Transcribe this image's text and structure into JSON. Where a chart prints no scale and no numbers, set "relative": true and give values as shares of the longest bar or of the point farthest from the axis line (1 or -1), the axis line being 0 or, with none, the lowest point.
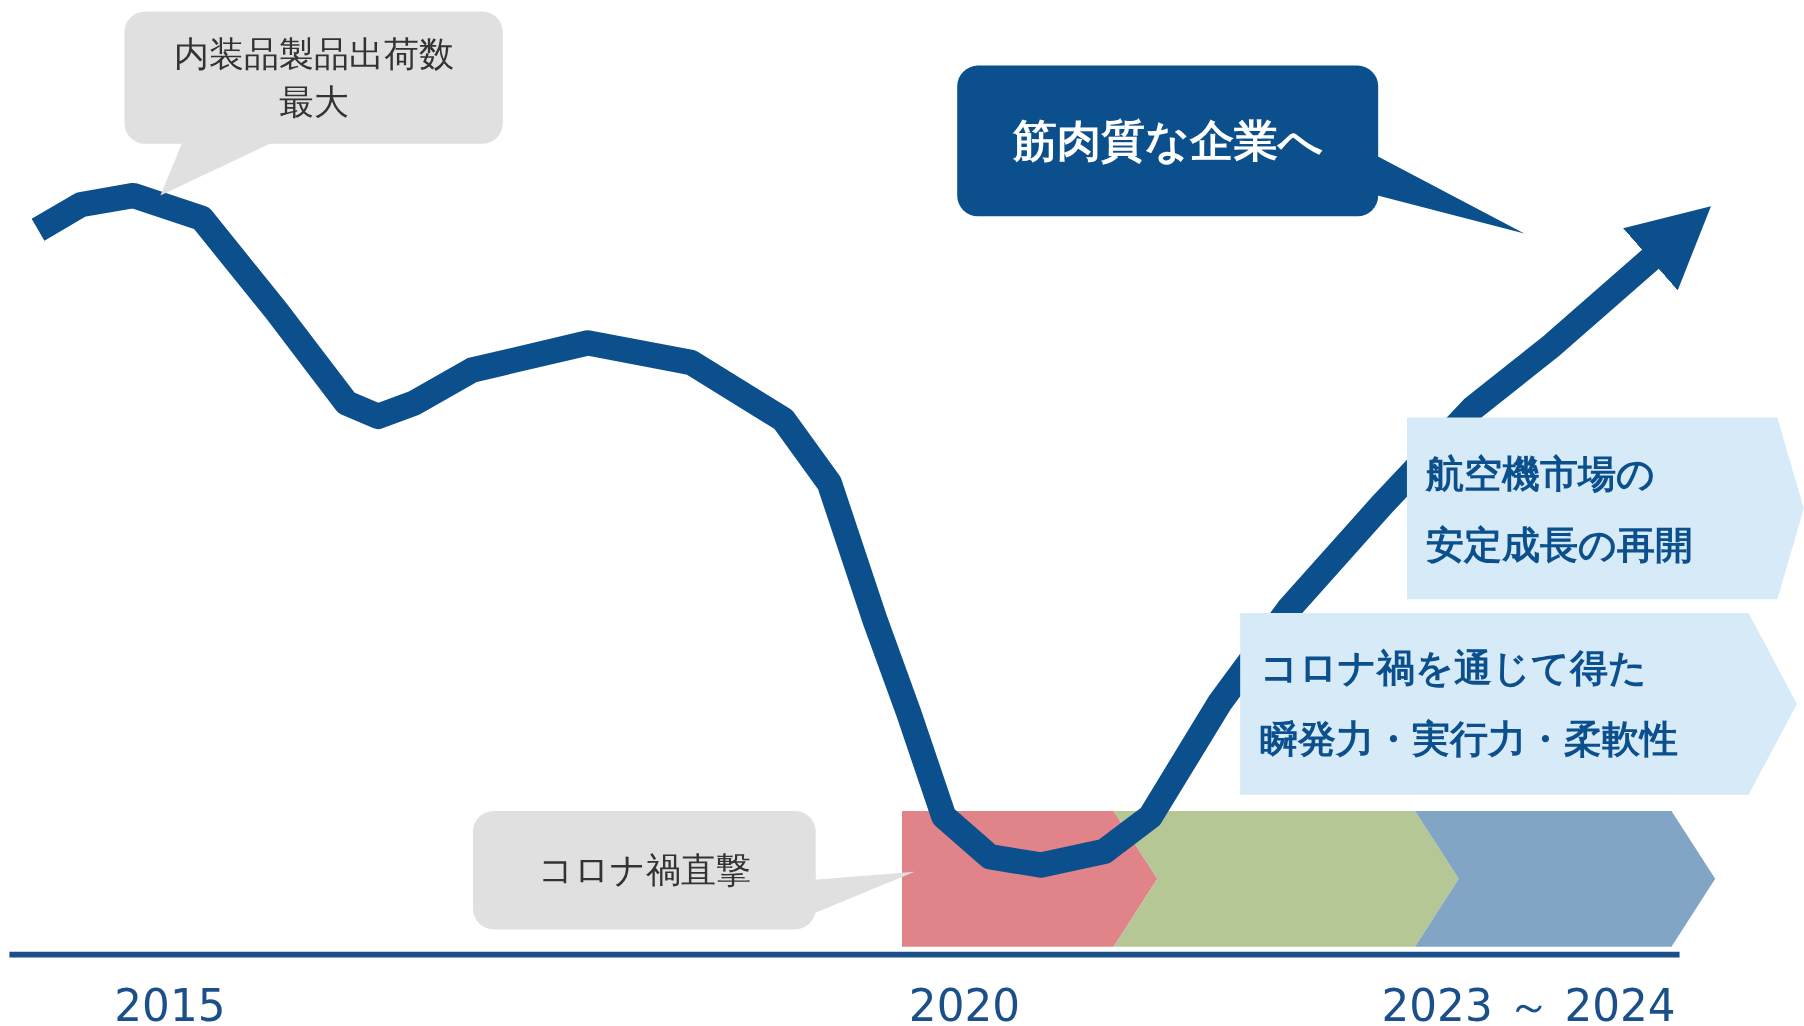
{
  "chart_data": {
    "type": "line",
    "relative": true,
    "tick_labels": "x",
    "x": [
      2014.17,
      2014.44,
      2014.77,
      2015.2,
      2015.67,
      2016.11,
      2016.31,
      2016.54,
      2016.9,
      2017.63,
      2018.28,
      2018.86,
      2019.15,
      2019.44,
      2019.65,
      2019.87,
      2020.16,
      2020.48,
      2020.88,
      2021.17,
      2021.61,
      2022.04,
      2022.62,
      2023.2,
      2023.7,
      2024.36
    ],
    "series": [
      {
        "color": "#0b4f8c",
        "values": [
          0.955,
          0.988,
          1,
          0.97,
          0.848,
          0.727,
          0.709,
          0.727,
          0.77,
          0.806,
          0.78,
          0.705,
          0.621,
          0.439,
          0.318,
          0.182,
          0.129,
          0.118,
          0.136,
          0.182,
          0.333,
          0.455,
          0.591,
          0.72,
          0.803,
          0.924
        ]
      }
    ],
    "xlim": [
      2013.99,
      2024.5
    ],
    "xticks": [
      2015,
      2020,
      {
        "value": 2023.55,
        "label": "2023 ～ 2024"
      }
    ],
    "annotations": [
      {
        "text": "内装品製品出荷数最大",
        "x": 2014.94,
        "y": 1
      },
      "コロナ禍直撃",
      "筋肉質な企業へ",
      "航空機市場の安定成長の再開",
      "コロナ禍を通じて得た瞬発力・実行力・柔軟性"
    ]
  }
}
